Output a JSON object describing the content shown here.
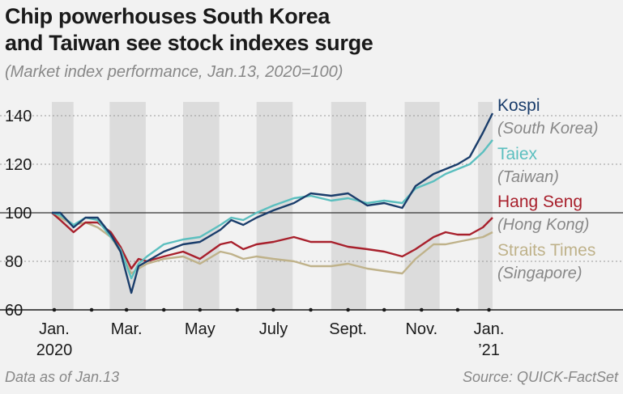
{
  "title_line1": "Chip powerhouses South Korea",
  "title_line2": "and Taiwan see stock indexes surge",
  "subtitle": "(Market index performance, Jan.13, 2020=100)",
  "footer_note": "Data as of Jan.13",
  "source": "Source: QUICK-FactSet",
  "chart_data": {
    "type": "line",
    "xlim": [
      "2020-01-13",
      "2021-01-13"
    ],
    "ylim": [
      60,
      145
    ],
    "yticks": [
      60,
      80,
      100,
      120,
      140
    ],
    "reference_line": 100,
    "x_labels": [
      {
        "month": "Jan.",
        "year": "2020",
        "date": "2020-01-15"
      },
      {
        "month": "Mar.",
        "year": "",
        "date": "2020-03-15"
      },
      {
        "month": "May",
        "year": "",
        "date": "2020-05-15"
      },
      {
        "month": "July",
        "year": "",
        "date": "2020-07-15"
      },
      {
        "month": "Sept.",
        "year": "",
        "date": "2020-09-15"
      },
      {
        "month": "Nov.",
        "year": "",
        "date": "2020-11-15"
      },
      {
        "month": "Jan.",
        "year": "’21",
        "date": "2021-01-10"
      }
    ],
    "month_bands": [
      [
        "2020-01-01",
        "2020-01-31"
      ],
      [
        "2020-03-01",
        "2020-03-31"
      ],
      [
        "2020-05-01",
        "2020-05-31"
      ],
      [
        "2020-07-01",
        "2020-07-31"
      ],
      [
        "2020-09-01",
        "2020-09-30"
      ],
      [
        "2020-11-01",
        "2020-11-30"
      ],
      [
        "2021-01-01",
        "2021-01-13"
      ]
    ],
    "x": [
      "2020-01-13",
      "2020-01-20",
      "2020-01-31",
      "2020-02-10",
      "2020-02-20",
      "2020-03-02",
      "2020-03-10",
      "2020-03-19",
      "2020-03-25",
      "2020-04-01",
      "2020-04-15",
      "2020-05-01",
      "2020-05-15",
      "2020-06-01",
      "2020-06-10",
      "2020-06-20",
      "2020-07-01",
      "2020-07-15",
      "2020-08-01",
      "2020-08-15",
      "2020-09-01",
      "2020-09-15",
      "2020-10-01",
      "2020-10-15",
      "2020-10-30",
      "2020-11-10",
      "2020-11-25",
      "2020-12-05",
      "2020-12-15",
      "2020-12-25",
      "2021-01-05",
      "2021-01-13"
    ],
    "series": [
      {
        "name": "Kospi",
        "country": "(South Korea)",
        "color": "#1a3d6b",
        "values": [
          100,
          100,
          94,
          98,
          98,
          91,
          84,
          67,
          78,
          80,
          84,
          87,
          88,
          93,
          97,
          95,
          98,
          101,
          104,
          108,
          107,
          108,
          103,
          104,
          102,
          111,
          116,
          118,
          120,
          123,
          133,
          141
        ]
      },
      {
        "name": "Taiex",
        "country": "(Taiwan)",
        "color": "#5bbfbf",
        "values": [
          100,
          99,
          95,
          98,
          97,
          90,
          85,
          73,
          79,
          82,
          87,
          89,
          90,
          95,
          98,
          97,
          100,
          103,
          106,
          107,
          105,
          106,
          104,
          105,
          104,
          110,
          113,
          116,
          118,
          120,
          125,
          130
        ]
      },
      {
        "name": "Hang Seng",
        "country": "(Hong Kong)",
        "color": "#a8202c",
        "values": [
          100,
          97,
          92,
          96,
          96,
          92,
          86,
          77,
          81,
          80,
          82,
          84,
          81,
          87,
          88,
          85,
          87,
          88,
          90,
          88,
          88,
          86,
          85,
          84,
          82,
          85,
          90,
          92,
          91,
          91,
          94,
          98
        ]
      },
      {
        "name": "Straits Times",
        "country": "(Singapore)",
        "color": "#bfb28a",
        "values": [
          100,
          98,
          95,
          96,
          94,
          90,
          84,
          75,
          77,
          79,
          81,
          82,
          79,
          84,
          83,
          81,
          82,
          81,
          80,
          78,
          78,
          79,
          77,
          76,
          75,
          81,
          87,
          87,
          88,
          89,
          90,
          92
        ]
      }
    ]
  }
}
